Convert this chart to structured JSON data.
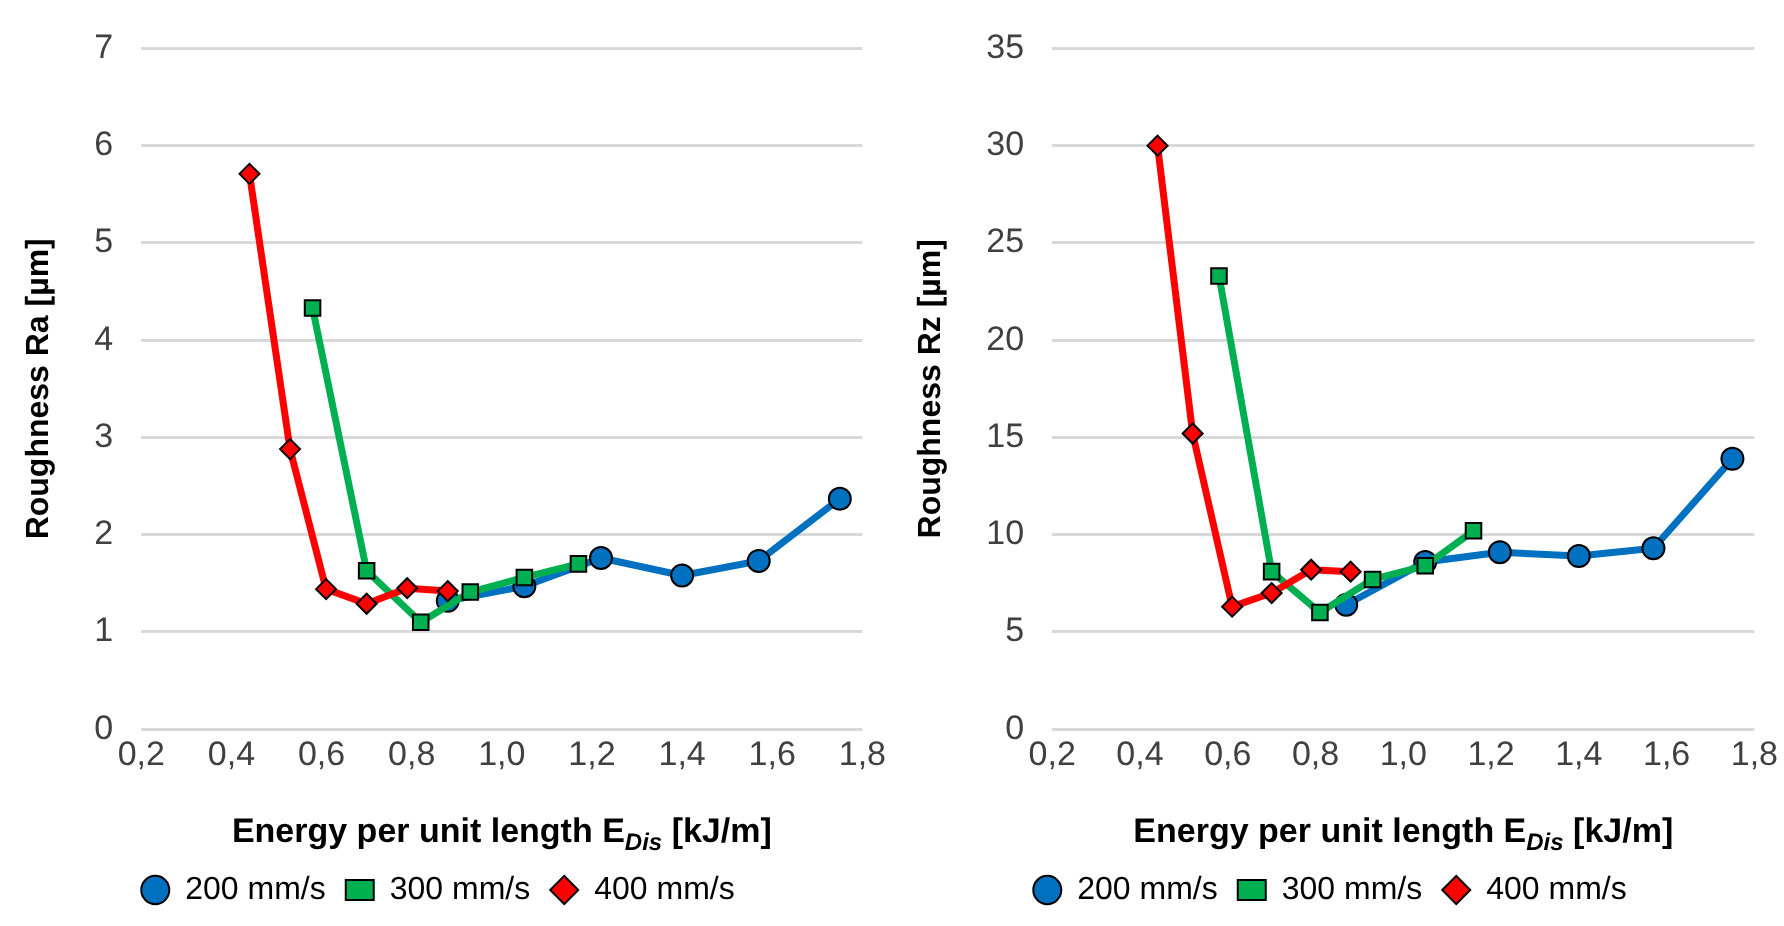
{
  "chart_data": [
    {
      "type": "line",
      "xlabel": "Energy per unit length E$_{Dis}$ [kJ/m]",
      "ylabel": "Roughness Ra [µm]",
      "xlim": [
        0.2,
        1.8
      ],
      "xticks": [
        {
          "value": 0.2,
          "label": "0,2"
        },
        {
          "value": 0.4,
          "label": "0,4"
        },
        {
          "value": 0.6,
          "label": "0,6"
        },
        {
          "value": 0.8,
          "label": "0,8"
        },
        {
          "value": 1.0,
          "label": "1,0"
        },
        {
          "value": 1.2,
          "label": "1,2"
        },
        {
          "value": 1.4,
          "label": "1,4"
        },
        {
          "value": 1.6,
          "label": "1,6"
        },
        {
          "value": 1.8,
          "label": "1,8"
        }
      ],
      "ylim": [
        0,
        7
      ],
      "yticks": [
        0,
        1,
        2,
        3,
        4,
        5,
        6,
        7
      ],
      "grid": "y",
      "legend": "bottom",
      "line_style": "solid",
      "series": [
        {
          "name": "200 mm/s",
          "color": "#0070c0",
          "marker": "circle",
          "x": [
            0.88,
            1.05,
            1.22,
            1.4,
            1.57,
            1.75
          ],
          "values": [
            1.32,
            1.47,
            1.76,
            1.58,
            1.73,
            2.37
          ]
        },
        {
          "name": "300 mm/s",
          "color": "#00b050",
          "marker": "square",
          "x": [
            0.58,
            0.7,
            0.82,
            0.93,
            1.05,
            1.17
          ],
          "values": [
            4.33,
            1.63,
            1.1,
            1.41,
            1.56,
            1.7
          ]
        },
        {
          "name": "400 mm/s",
          "color": "#ff0000",
          "marker": "diamond",
          "x": [
            0.44,
            0.53,
            0.61,
            0.7,
            0.79,
            0.88
          ],
          "values": [
            5.71,
            2.88,
            1.44,
            1.29,
            1.45,
            1.42
          ]
        }
      ]
    },
    {
      "type": "line",
      "xlabel": "Energy per unit length E$_{Dis}$ [kJ/m]",
      "ylabel": "Roughness Rz [µm]",
      "xlim": [
        0.2,
        1.8
      ],
      "xticks": [
        {
          "value": 0.2,
          "label": "0,2"
        },
        {
          "value": 0.4,
          "label": "0,4"
        },
        {
          "value": 0.6,
          "label": "0,6"
        },
        {
          "value": 0.8,
          "label": "0,8"
        },
        {
          "value": 1.0,
          "label": "1,0"
        },
        {
          "value": 1.2,
          "label": "1,2"
        },
        {
          "value": 1.4,
          "label": "1,4"
        },
        {
          "value": 1.6,
          "label": "1,6"
        },
        {
          "value": 1.8,
          "label": "1,8"
        }
      ],
      "ylim": [
        0,
        35
      ],
      "yticks": [
        0,
        5,
        10,
        15,
        20,
        25,
        30,
        35
      ],
      "grid": "y",
      "legend": "bottom",
      "line_style": "solid",
      "series": [
        {
          "name": "200 mm/s",
          "color": "#0070c0",
          "marker": "circle",
          "x": [
            0.87,
            1.05,
            1.22,
            1.4,
            1.57,
            1.75
          ],
          "values": [
            6.4,
            8.6,
            9.1,
            8.9,
            9.3,
            13.9
          ]
        },
        {
          "name": "300 mm/s",
          "color": "#00b050",
          "marker": "square",
          "x": [
            0.58,
            0.7,
            0.81,
            0.93,
            1.05,
            1.16
          ],
          "values": [
            23.3,
            8.1,
            6.0,
            7.7,
            8.4,
            10.2
          ]
        },
        {
          "name": "400 mm/s",
          "color": "#ff0000",
          "marker": "diamond",
          "x": [
            0.44,
            0.52,
            0.61,
            0.7,
            0.79,
            0.88
          ],
          "values": [
            30.0,
            15.2,
            6.3,
            7.0,
            8.2,
            8.1
          ]
        }
      ]
    }
  ]
}
